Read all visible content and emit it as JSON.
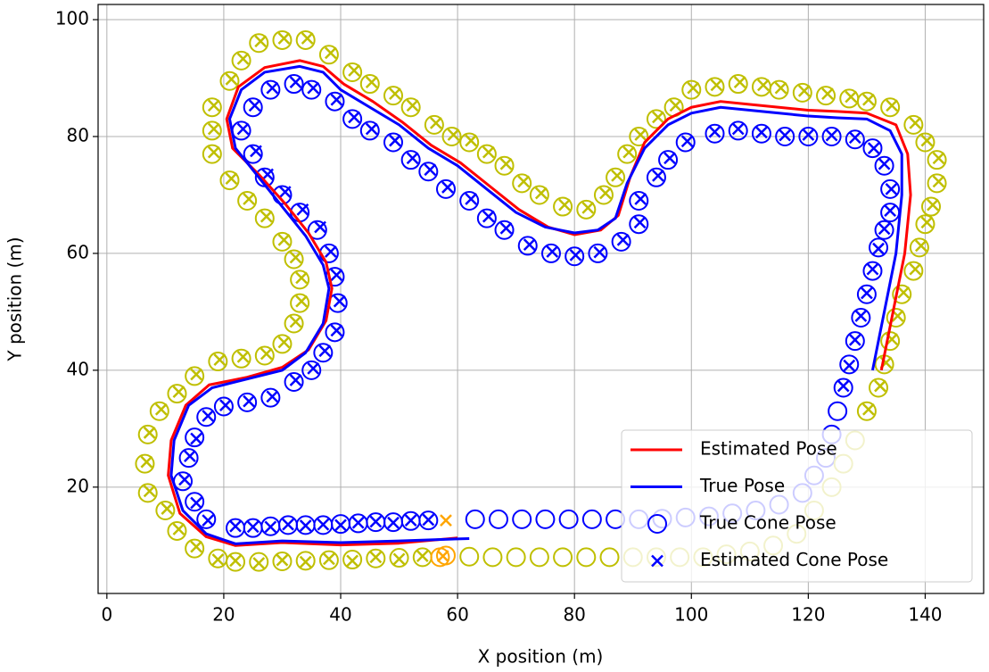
{
  "chart_data": {
    "type": "scatter",
    "xlabel": "X position (m)",
    "ylabel": "Y position (m)",
    "xlim": [
      -1.5,
      150
    ],
    "ylim": [
      1.8,
      102.6
    ],
    "xticks": [
      0,
      20,
      40,
      60,
      80,
      100,
      120,
      140
    ],
    "yticks": [
      20,
      40,
      60,
      80,
      100
    ],
    "grid": true,
    "legend": "lower right",
    "series": [
      {
        "name": "Estimated Pose",
        "color": "#ff0000",
        "style": "line",
        "x": [
          60,
          50,
          40,
          30,
          22,
          17,
          12.5,
          10.5,
          11,
          13.5,
          17.5,
          24,
          30,
          34.5,
          37.5,
          38.5,
          37.5,
          34.5,
          30.5,
          26,
          21.5,
          20.5,
          22.5,
          27,
          33,
          37,
          40.5,
          45.5,
          50.5,
          55.5,
          60.5,
          65.5,
          70.5,
          75.5,
          80,
          84.5,
          87.5,
          89.5,
          92,
          96,
          100,
          105,
          110,
          115,
          120,
          125,
          130,
          135,
          137,
          137.5,
          136.5,
          134.5,
          132.5
        ],
        "y": [
          11.3,
          10.4,
          10.1,
          10.5,
          10,
          11.5,
          15.5,
          22,
          28,
          34,
          37.5,
          38.8,
          40.5,
          43.5,
          48.5,
          54,
          58.5,
          63.5,
          68.5,
          73.5,
          78,
          83,
          88.5,
          91.8,
          93,
          92,
          89,
          86,
          82.5,
          78.5,
          75.5,
          71.5,
          67.5,
          64.5,
          63.2,
          64,
          66.5,
          73,
          79,
          83,
          85,
          86,
          85.5,
          85,
          84.5,
          84.3,
          84,
          82,
          77,
          70,
          60,
          50,
          40
        ]
      },
      {
        "name": "True Pose",
        "color": "#0000ff",
        "style": "line",
        "x": [
          62,
          50,
          40,
          30,
          22,
          17,
          13,
          11,
          11.5,
          14,
          18,
          24,
          30,
          34,
          37,
          38,
          37,
          34,
          30,
          26,
          22,
          21,
          23,
          27,
          33,
          37,
          40,
          45,
          50,
          55,
          60,
          65,
          70,
          75,
          80,
          84,
          87,
          89,
          92,
          96,
          100,
          105,
          110,
          115,
          120,
          125,
          130,
          134,
          136,
          136,
          135,
          133,
          131
        ],
        "y": [
          11.2,
          10.8,
          10.5,
          10.8,
          10.3,
          12,
          16,
          22,
          28,
          34,
          37,
          38.5,
          40,
          43,
          48,
          54,
          58,
          63,
          68,
          73,
          78,
          83,
          88,
          91,
          92,
          91,
          88,
          85,
          82,
          78,
          75,
          71,
          67,
          64.5,
          63.5,
          64,
          66,
          72,
          78,
          82,
          84,
          85,
          84.5,
          84,
          83.5,
          83.2,
          83,
          81,
          77,
          70,
          60,
          50,
          40
        ]
      },
      {
        "name": "True Cone Pose",
        "color": "#0000ff",
        "style": "circle",
        "x": [
          22,
          25,
          28,
          31,
          34,
          37,
          40,
          43,
          46,
          49,
          52,
          55,
          63,
          67,
          71,
          75,
          79,
          83,
          87,
          91,
          95,
          99,
          103,
          107,
          111,
          115,
          119,
          121,
          123,
          124,
          125,
          126,
          127,
          128,
          129,
          130,
          131,
          132,
          133,
          134,
          134,
          133,
          131,
          128,
          124,
          120,
          116,
          112,
          108,
          104,
          99,
          96,
          94,
          91,
          91,
          88,
          84,
          80,
          76,
          72,
          68,
          65,
          62,
          58,
          55,
          52,
          49,
          45,
          42,
          39,
          35,
          32,
          28,
          25,
          23,
          25,
          27,
          30,
          33,
          36,
          38,
          39,
          39.5,
          39,
          37,
          35,
          32,
          28,
          24,
          20,
          17,
          15,
          14,
          13,
          15,
          17
        ],
        "y": [
          13,
          13,
          13.3,
          13.5,
          13.5,
          13.5,
          13.7,
          13.8,
          14,
          14,
          14.2,
          14.3,
          14.5,
          14.5,
          14.5,
          14.5,
          14.5,
          14.5,
          14.5,
          14.5,
          14.6,
          14.8,
          15,
          15.5,
          16,
          17,
          19,
          22,
          25,
          29,
          33,
          37,
          41,
          45,
          49,
          53,
          57,
          61,
          64,
          67,
          71,
          75,
          78,
          79.5,
          80,
          80,
          80,
          80.5,
          81,
          80.5,
          79,
          76,
          73,
          69,
          65,
          62,
          60,
          59.5,
          60,
          61.3,
          64,
          66,
          69,
          71,
          74,
          76,
          79,
          81,
          83,
          86,
          88,
          89,
          88,
          85,
          81,
          77,
          73,
          70,
          67,
          64,
          60,
          56,
          51.5,
          46.5,
          43,
          40,
          38,
          35.3,
          34.5,
          33.8,
          32,
          28.5,
          25,
          21,
          17.5,
          14.5
        ]
      },
      {
        "name": "Estimated Cone Pose",
        "color": "#0000ff",
        "style": "cross",
        "x": [
          22,
          25,
          28,
          31,
          34,
          37,
          40,
          43,
          46,
          49,
          52,
          55,
          126,
          127,
          128,
          129,
          130,
          131,
          132,
          133,
          134,
          134.2,
          133,
          131.2,
          128,
          124,
          120,
          116,
          112,
          108,
          104,
          99.3,
          96.3,
          94.3,
          91.3,
          91.2,
          88.3,
          84.3,
          80.2,
          76.2,
          72.3,
          68.3,
          65.3,
          62.3,
          58.3,
          55.3,
          52.3,
          49.3,
          45.3,
          42.3,
          39.3,
          35.3,
          32.3,
          28.3,
          25.3,
          23.3,
          25.5,
          27.5,
          30.5,
          33.5,
          36.5,
          38.3,
          39.3,
          39.8,
          39.3,
          37.3,
          35.3,
          32.3,
          28.3,
          24.3,
          20.3,
          17.3,
          15.3,
          14.2,
          13.3,
          15.3,
          17.3
        ],
        "y": [
          13.3,
          13.2,
          13.2,
          13.6,
          13.4,
          13.6,
          13.5,
          13.9,
          14.1,
          13.9,
          14.3,
          14.4,
          37.3,
          40.8,
          45.2,
          49.3,
          53.2,
          57.3,
          60.8,
          64.2,
          67.3,
          71,
          75.3,
          78,
          79.8,
          80.2,
          80.3,
          80.2,
          80.7,
          81.3,
          80.8,
          79.2,
          76.3,
          73.3,
          69.3,
          65.3,
          62.3,
          60.2,
          59.7,
          60.3,
          61.5,
          64.3,
          66.3,
          69.3,
          71.3,
          74.3,
          76.3,
          79.3,
          81.3,
          83.3,
          86.3,
          88.3,
          89.3,
          88.3,
          85.3,
          81.3,
          77.5,
          73.5,
          70.5,
          67.5,
          64.5,
          60.3,
          56.3,
          51.8,
          46.8,
          43.3,
          40.3,
          38.3,
          35.5,
          34.7,
          34,
          32.2,
          28.3,
          25.3,
          21.3,
          17.3,
          14.3
        ]
      },
      {
        "color": "#bfbf00",
        "style": "circle",
        "x": [
          19,
          22,
          26,
          30,
          34,
          38,
          42,
          46,
          50,
          54,
          62,
          66,
          70,
          74,
          78,
          82,
          86,
          90,
          94,
          98,
          102,
          106,
          110,
          114,
          118,
          121,
          124,
          126,
          128,
          130,
          132,
          133,
          134,
          135,
          136,
          138,
          139,
          140,
          141,
          142,
          142,
          140,
          138,
          134,
          130,
          127,
          123,
          119,
          115,
          112,
          108,
          104,
          100,
          97,
          94,
          91,
          89,
          87,
          85,
          82,
          78,
          74,
          71,
          68,
          65,
          62,
          59,
          56,
          52,
          49,
          45,
          42,
          38,
          34,
          30,
          26,
          23,
          21,
          18,
          18,
          18,
          21,
          24,
          27,
          30,
          32,
          33,
          33,
          32,
          30,
          27,
          23,
          19,
          15,
          12,
          9,
          7,
          6.5,
          7,
          10,
          12,
          15
        ],
        "y": [
          7.8,
          7.2,
          7.2,
          7.3,
          7.4,
          7.5,
          7.6,
          7.8,
          7.9,
          8,
          8.1,
          8,
          8,
          8,
          8,
          8,
          8,
          8,
          8,
          8,
          8,
          8.5,
          9,
          10,
          12,
          16,
          20,
          24,
          28,
          33,
          37,
          41,
          45,
          49,
          53,
          57,
          61,
          65,
          68,
          72,
          76,
          79,
          82,
          85,
          86,
          86.5,
          87,
          87.5,
          88,
          88.5,
          89,
          88.5,
          88,
          85,
          83,
          80,
          77,
          73,
          70,
          67.5,
          68,
          70,
          72,
          75,
          77,
          79,
          80,
          82,
          85,
          87,
          89,
          91,
          94,
          96.5,
          96.5,
          96,
          93,
          89.5,
          85,
          81,
          77,
          72.5,
          69,
          66,
          62,
          59,
          55.5,
          51.5,
          48,
          44.5,
          42.5,
          42,
          41.5,
          39,
          36,
          33,
          29,
          24,
          19,
          16,
          12.5,
          9.5
        ]
      },
      {
        "color": "#bfbf00",
        "style": "cross",
        "x": [
          19,
          22,
          26,
          30,
          34,
          38,
          42,
          46,
          50,
          54,
          130.3,
          132.3,
          133.3,
          134.3,
          135.3,
          136.3,
          138.3,
          139.3,
          140.3,
          141.3,
          142.3,
          142.3,
          140.3,
          138.3,
          134.3,
          130.3,
          127.3,
          123.3,
          119.3,
          115.3,
          112.3,
          108.3,
          104.3,
          100.3,
          97.3,
          94.3,
          91.3,
          89.3,
          87.3,
          85.3,
          82.3,
          78.3,
          74.3,
          71.3,
          68.3,
          65.3,
          62.3,
          59.3,
          56.3,
          52.3,
          49.3,
          45.3,
          42.3,
          38.3,
          34.3,
          30.3,
          26.3,
          23.3,
          21.3,
          18.3,
          18.3,
          18.3,
          21.3,
          24.3,
          27.3,
          30.3,
          32.3,
          33.3,
          33.3,
          32.3,
          30.3,
          27.3,
          23.3,
          19.3,
          15.3,
          12.3,
          9.3,
          7.3,
          6.8,
          7.3,
          10.3,
          12.3,
          15.3
        ],
        "y": [
          7.6,
          7.4,
          7,
          7.5,
          7.2,
          7.7,
          7.4,
          8,
          7.7,
          8.2,
          33.3,
          37.3,
          41.3,
          45.3,
          49.3,
          53.3,
          57.3,
          61.3,
          65.3,
          68.3,
          72.3,
          76.3,
          79.3,
          82.3,
          85.3,
          86.3,
          86.8,
          87.3,
          87.8,
          88.3,
          88.8,
          89.3,
          88.8,
          88.3,
          85.3,
          83.3,
          80.3,
          77.3,
          73.3,
          70.3,
          67.8,
          68.3,
          70.3,
          72.3,
          75.3,
          77.3,
          79.3,
          80.3,
          82.3,
          85.3,
          87.3,
          89.3,
          91.3,
          94.3,
          96.8,
          96.8,
          96.3,
          93.3,
          89.8,
          85.3,
          81.3,
          77.3,
          72.8,
          69.3,
          66.3,
          62.3,
          59.3,
          55.8,
          51.8,
          48.3,
          44.8,
          42.8,
          42.3,
          41.8,
          39.3,
          36.3,
          33.3,
          29.3,
          24.3,
          19.3,
          16.3,
          12.8,
          9.8
        ]
      },
      {
        "color": "#ffa500",
        "style": "circle",
        "x": [
          57,
          58
        ],
        "y": [
          8,
          8.3
        ]
      },
      {
        "color": "#ffa500",
        "style": "cross",
        "x": [
          58,
          57.5
        ],
        "y": [
          14.3,
          8.2
        ]
      }
    ]
  }
}
